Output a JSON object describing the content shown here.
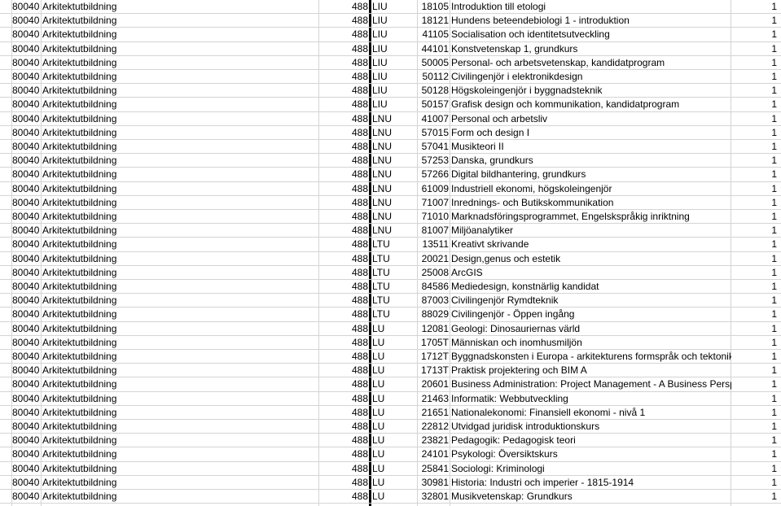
{
  "rows": [
    [
      "80040",
      "Arkitektutbildning",
      "488",
      "LIU",
      "18105",
      "Introduktion till etologi",
      "1"
    ],
    [
      "80040",
      "Arkitektutbildning",
      "488",
      "LIU",
      "18121",
      "Hundens beteendebiologi 1 - introduktion",
      "1"
    ],
    [
      "80040",
      "Arkitektutbildning",
      "488",
      "LIU",
      "41105",
      "Socialisation och identitetsutveckling",
      "1"
    ],
    [
      "80040",
      "Arkitektutbildning",
      "488",
      "LIU",
      "44101",
      "Konstvetenskap 1, grundkurs",
      "1"
    ],
    [
      "80040",
      "Arkitektutbildning",
      "488",
      "LIU",
      "50005",
      "Personal- och arbetsvetenskap, kandidatprogram",
      "1"
    ],
    [
      "80040",
      "Arkitektutbildning",
      "488",
      "LIU",
      "50112",
      "Civilingenjör i elektronikdesign",
      "1"
    ],
    [
      "80040",
      "Arkitektutbildning",
      "488",
      "LIU",
      "50128",
      "Högskoleingenjör i byggnadsteknik",
      "1"
    ],
    [
      "80040",
      "Arkitektutbildning",
      "488",
      "LIU",
      "50157",
      "Grafisk design och kommunikation, kandidatprogram",
      "1"
    ],
    [
      "80040",
      "Arkitektutbildning",
      "488",
      "LNU",
      "41007",
      "Personal och arbetsliv",
      "1"
    ],
    [
      "80040",
      "Arkitektutbildning",
      "488",
      "LNU",
      "57015",
      "Form och design I",
      "1"
    ],
    [
      "80040",
      "Arkitektutbildning",
      "488",
      "LNU",
      "57041",
      "Musikteori II",
      "1"
    ],
    [
      "80040",
      "Arkitektutbildning",
      "488",
      "LNU",
      "57253",
      "Danska, grundkurs",
      "1"
    ],
    [
      "80040",
      "Arkitektutbildning",
      "488",
      "LNU",
      "57266",
      "Digital bildhantering, grundkurs",
      "1"
    ],
    [
      "80040",
      "Arkitektutbildning",
      "488",
      "LNU",
      "61009",
      "Industriell ekonomi, högskoleingenjör",
      "1"
    ],
    [
      "80040",
      "Arkitektutbildning",
      "488",
      "LNU",
      "71007",
      "Inrednings- och Butikskommunikation",
      "1"
    ],
    [
      "80040",
      "Arkitektutbildning",
      "488",
      "LNU",
      "71010",
      "Marknadsföringsprogrammet, Engelskspråkig inriktning",
      "1"
    ],
    [
      "80040",
      "Arkitektutbildning",
      "488",
      "LNU",
      "81007",
      "Miljöanalytiker",
      "1"
    ],
    [
      "80040",
      "Arkitektutbildning",
      "488",
      "LTU",
      "13511",
      "Kreativt skrivande",
      "1"
    ],
    [
      "80040",
      "Arkitektutbildning",
      "488",
      "LTU",
      "20021",
      "Design,genus och estetik",
      "1"
    ],
    [
      "80040",
      "Arkitektutbildning",
      "488",
      "LTU",
      "25008",
      "ArcGIS",
      "1"
    ],
    [
      "80040",
      "Arkitektutbildning",
      "488",
      "LTU",
      "84586",
      "Mediedesign, konstnärlig kandidat",
      "1"
    ],
    [
      "80040",
      "Arkitektutbildning",
      "488",
      "LTU",
      "87003",
      "Civilingenjör Rymdteknik",
      "1"
    ],
    [
      "80040",
      "Arkitektutbildning",
      "488",
      "LTU",
      "88029",
      "Civilingenjör - Öppen ingång",
      "1"
    ],
    [
      "80040",
      "Arkitektutbildning",
      "488",
      "LU",
      "12081",
      "Geologi: Dinosauriernas värld",
      "1"
    ],
    [
      "80040",
      "Arkitektutbildning",
      "488",
      "LU",
      "1705T",
      "Människan och inomhusmiljön",
      "1"
    ],
    [
      "80040",
      "Arkitektutbildning",
      "488",
      "LU",
      "1712T",
      "Byggnadskonsten i Europa - arkitekturens formspråk och tektonik",
      "1"
    ],
    [
      "80040",
      "Arkitektutbildning",
      "488",
      "LU",
      "1713T",
      "Praktisk projektering och BIM A",
      "1"
    ],
    [
      "80040",
      "Arkitektutbildning",
      "488",
      "LU",
      "20601",
      "Business Administration: Project Management - A Business Perspective",
      "1"
    ],
    [
      "80040",
      "Arkitektutbildning",
      "488",
      "LU",
      "21463",
      "Informatik: Webbutveckling",
      "1"
    ],
    [
      "80040",
      "Arkitektutbildning",
      "488",
      "LU",
      "21651",
      "Nationalekonomi: Finansiell ekonomi - nivå 1",
      "1"
    ],
    [
      "80040",
      "Arkitektutbildning",
      "488",
      "LU",
      "22812",
      "Utvidgad juridisk introduktionskurs",
      "1"
    ],
    [
      "80040",
      "Arkitektutbildning",
      "488",
      "LU",
      "23821",
      "Pedagogik: Pedagogisk teori",
      "1"
    ],
    [
      "80040",
      "Arkitektutbildning",
      "488",
      "LU",
      "24101",
      "Psykologi: Översiktskurs",
      "1"
    ],
    [
      "80040",
      "Arkitektutbildning",
      "488",
      "LU",
      "25841",
      "Sociologi: Kriminologi",
      "1"
    ],
    [
      "80040",
      "Arkitektutbildning",
      "488",
      "LU",
      "30981",
      "Historia: Industri och imperier - 1815-1914",
      "1"
    ],
    [
      "80040",
      "Arkitektutbildning",
      "488",
      "LU",
      "32801",
      "Musikvetenskap: Grundkurs",
      "1"
    ]
  ]
}
